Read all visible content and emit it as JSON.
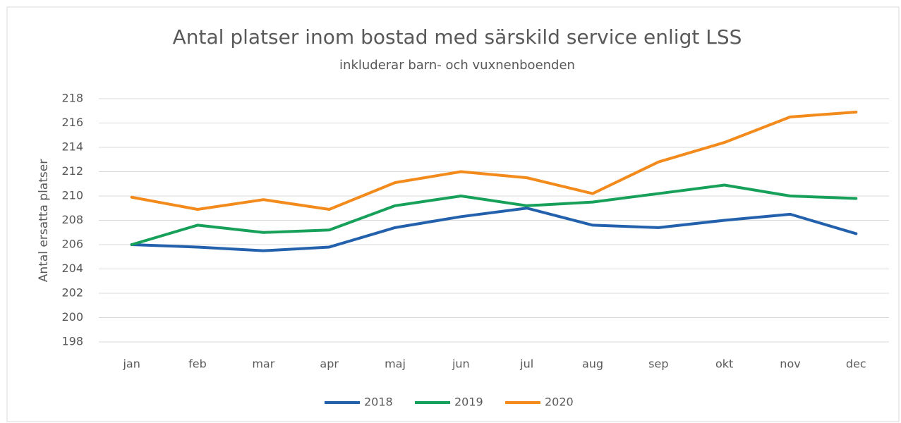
{
  "chart_data": {
    "type": "line",
    "title": "Antal platser inom bostad med särskild service enligt LSS",
    "subtitle": "inkluderar barn- och vuxnenboenden",
    "y_label": "Antal ersatta platser",
    "categories": [
      "jan",
      "feb",
      "mar",
      "apr",
      "maj",
      "jun",
      "jul",
      "aug",
      "sep",
      "okt",
      "nov",
      "dec"
    ],
    "series": [
      {
        "name": "2018",
        "color": "#2361ad",
        "values": [
          206,
          205.8,
          205.5,
          205.8,
          207.4,
          208.3,
          209,
          207.6,
          207.4,
          208,
          208.5,
          206.9
        ]
      },
      {
        "name": "2019",
        "color": "#17a05a",
        "values": [
          206,
          207.6,
          207,
          207.2,
          209.2,
          210,
          209.2,
          209.5,
          210.2,
          210.9,
          210,
          209.8
        ]
      },
      {
        "name": "2020",
        "color": "#f28a1c",
        "values": [
          209.9,
          208.9,
          209.7,
          208.9,
          211.1,
          212,
          211.5,
          210.2,
          212.8,
          214.4,
          216.5,
          216.9
        ]
      }
    ],
    "ylim": [
      198,
      218
    ],
    "yticks": [
      198,
      200,
      202,
      204,
      206,
      208,
      210,
      212,
      214,
      216,
      218
    ],
    "grid": true,
    "legend": "bottom"
  }
}
